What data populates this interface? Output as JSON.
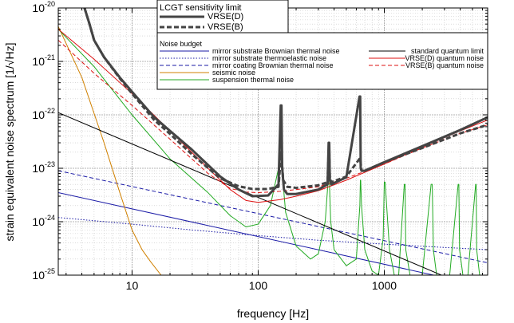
{
  "chart_data": {
    "type": "line",
    "xlabel": "frequency [Hz]",
    "ylabel": "strain equivalent noise spectrum [1/√Hz]",
    "x_scale": "log",
    "y_scale": "log",
    "xlim": [
      2.6,
      6600
    ],
    "ylim": [
      1e-25,
      1e-20
    ],
    "grid": true,
    "x_ticks": [
      {
        "value": 10,
        "label": "10"
      },
      {
        "value": 100,
        "label": "100"
      },
      {
        "value": 1000,
        "label": "1000"
      }
    ],
    "y_ticks": [
      {
        "value": 1e-25,
        "base": "10",
        "exp": "-25"
      },
      {
        "value": 1e-24,
        "base": "10",
        "exp": "-24"
      },
      {
        "value": 1e-23,
        "base": "10",
        "exp": "-23"
      },
      {
        "value": 1e-22,
        "base": "10",
        "exp": "-22"
      },
      {
        "value": 1e-21,
        "base": "10",
        "exp": "-21"
      },
      {
        "value": 1e-20,
        "base": "10",
        "exp": "-20"
      }
    ],
    "legend_title": "LCGT sensitivity limit",
    "legend_subtitle": "Noise budget",
    "legend_placement": "top-right",
    "series": [
      {
        "name": "mirror substrate Brownian thermal noise",
        "color": "#1a1aa6",
        "dash": "solid",
        "width": 1,
        "x": [
          2.6,
          6600
        ],
        "y": [
          3.5e-24,
          6e-26
        ]
      },
      {
        "name": "mirror substrate thermoelastic noise",
        "color": "#1a1aa6",
        "dash": "dot",
        "width": 1,
        "x": [
          2.6,
          10,
          30,
          100,
          300,
          1000,
          3000,
          6600
        ],
        "y": [
          1.2e-24,
          9e-25,
          7e-25,
          5.5e-25,
          4.5e-25,
          3.8e-25,
          3.3e-25,
          3e-25
        ]
      },
      {
        "name": "mirror coating Brownian thermal noise",
        "color": "#1a1aa6",
        "dash": "dash",
        "width": 1,
        "x": [
          2.6,
          6600
        ],
        "y": [
          9e-24,
          1.7e-25
        ]
      },
      {
        "name": "seismic noise",
        "color": "#d08000",
        "dash": "solid",
        "width": 1,
        "x": [
          2.6,
          4,
          6,
          8,
          10,
          12,
          14,
          17
        ],
        "y": [
          4.5e-21,
          5e-22,
          3e-23,
          3.5e-24,
          7e-25,
          3e-25,
          1.8e-25,
          1e-25
        ]
      },
      {
        "name": "suspension thermal noise",
        "color": "#22aa22",
        "dash": "solid",
        "width": 1,
        "x": [
          2.6,
          5,
          10,
          20,
          40,
          60,
          80,
          100,
          125,
          145,
          151,
          153,
          155,
          158,
          165,
          200,
          260,
          300,
          340,
          362,
          366,
          370,
          376,
          400,
          500,
          600,
          640,
          646,
          650,
          660,
          700,
          800,
          900,
          980,
          1000,
          1015,
          1100,
          1200,
          1300,
          1440,
          1460,
          1480,
          1600,
          1800,
          2000,
          2350,
          2400,
          2450,
          2600,
          2900,
          3300,
          3850,
          3900,
          3950,
          4200,
          4600,
          5300,
          5350,
          5400,
          5700,
          6600
        ],
        "y": [
          4e-21,
          8e-22,
          1e-22,
          1.5e-23,
          3.5e-24,
          1.3e-24,
          8e-25,
          9e-25,
          2e-24,
          1e-23,
          1e-22,
          1e-22,
          3e-23,
          5e-24,
          1.5e-24,
          3.5e-25,
          2e-25,
          2.5e-25,
          1e-24,
          8e-24,
          8e-24,
          3e-24,
          1e-24,
          3e-25,
          1.5e-25,
          2e-25,
          2e-24,
          6e-24,
          6e-24,
          2e-24,
          3e-25,
          1.2e-25,
          1e-25,
          5e-25,
          5.5e-24,
          5.5e-24,
          3e-25,
          1e-25,
          1e-25,
          5e-24,
          5e-24,
          3e-25,
          1e-25,
          1e-25,
          1e-25,
          5e-24,
          5e-24,
          3e-25,
          1e-25,
          1e-25,
          1e-25,
          5e-24,
          5e-24,
          3e-25,
          1e-25,
          1e-25,
          5e-24,
          5e-24,
          3e-25,
          1e-25,
          1e-25
        ]
      },
      {
        "name": "standard quantum limit",
        "color": "#000000",
        "dash": "solid",
        "width": 1,
        "x": [
          2.6,
          6600
        ],
        "y": [
          1.1e-22,
          4.3e-26
        ]
      },
      {
        "name": "VRSE(D) quantum noise",
        "color": "#dd1111",
        "dash": "solid",
        "width": 1,
        "x": [
          2.6,
          5,
          10,
          20,
          40,
          60,
          80,
          100,
          150,
          200,
          300,
          500,
          1000,
          2000,
          4000,
          6600
        ],
        "y": [
          4e-21,
          1.1e-21,
          2.5e-22,
          5e-23,
          1e-23,
          4e-24,
          2.5e-24,
          2.3e-24,
          2.6e-24,
          3e-24,
          3.8e-24,
          6e-24,
          1.2e-23,
          2.5e-23,
          5e-23,
          8e-23
        ]
      },
      {
        "name": "VRSE(B) quantum noise",
        "color": "#dd1111",
        "dash": "dash",
        "width": 1,
        "x": [
          2.6,
          5,
          10,
          20,
          40,
          60,
          80,
          100,
          150,
          200,
          300,
          500,
          1000,
          2000,
          4000,
          6600
        ],
        "y": [
          2.5e-21,
          6e-22,
          1.5e-22,
          3.5e-23,
          8e-24,
          4.2e-24,
          3.6e-24,
          3.5e-24,
          3.7e-24,
          4e-24,
          4.5e-24,
          6.5e-24,
          1.2e-23,
          2.4e-23,
          4.5e-23,
          6.5e-23
        ]
      },
      {
        "name": "VRSE(D)",
        "color": "#444444",
        "dash": "solid",
        "width": 3,
        "x": [
          4.2,
          4.6,
          5,
          6,
          8,
          10,
          15,
          20,
          30,
          50,
          70,
          90,
          120,
          145,
          151,
          153,
          155,
          160,
          170,
          200,
          300,
          355,
          362,
          366,
          370,
          380,
          500,
          636,
          644,
          650,
          660,
          700,
          1000,
          2000,
          4000,
          6600
        ],
        "y": [
          1e-20,
          5e-21,
          2.5e-21,
          1.2e-21,
          5e-22,
          2.7e-22,
          9e-23,
          5e-23,
          2.2e-23,
          7e-24,
          4e-24,
          3e-24,
          3.1e-24,
          5e-24,
          1.5e-22,
          1.5e-22,
          1e-23,
          4e-24,
          3.3e-24,
          3.3e-24,
          4e-24,
          5e-24,
          3e-23,
          3e-23,
          6e-24,
          5e-24,
          6.8e-24,
          2.2e-22,
          2.2e-22,
          1e-23,
          9e-24,
          9e-24,
          1.3e-23,
          2.6e-23,
          5.2e-23,
          9e-23
        ]
      },
      {
        "name": "VRSE(B)",
        "color": "#444444",
        "dash": "dash",
        "width": 3,
        "x": [
          4.2,
          4.6,
          5,
          6,
          8,
          10,
          15,
          20,
          30,
          50,
          70,
          90,
          120,
          145,
          152,
          158,
          170,
          200,
          300,
          355,
          362,
          366,
          370,
          380,
          500,
          636,
          644,
          660,
          700,
          1000,
          2000,
          4000,
          6600
        ],
        "y": [
          1e-20,
          5e-21,
          2.5e-21,
          1.2e-21,
          4.8e-22,
          2.5e-22,
          8e-23,
          4.4e-23,
          1.8e-23,
          6.5e-24,
          4.6e-24,
          4.1e-24,
          4.1e-24,
          4.5e-24,
          2e-23,
          6e-24,
          4.5e-24,
          4.3e-24,
          4.8e-24,
          5.5e-24,
          2e-23,
          2e-23,
          6.5e-24,
          5.5e-24,
          7e-24,
          1.5e-23,
          1.5e-23,
          9e-24,
          9e-24,
          1.3e-23,
          2.4e-23,
          4.5e-23,
          6.5e-23
        ]
      }
    ]
  }
}
